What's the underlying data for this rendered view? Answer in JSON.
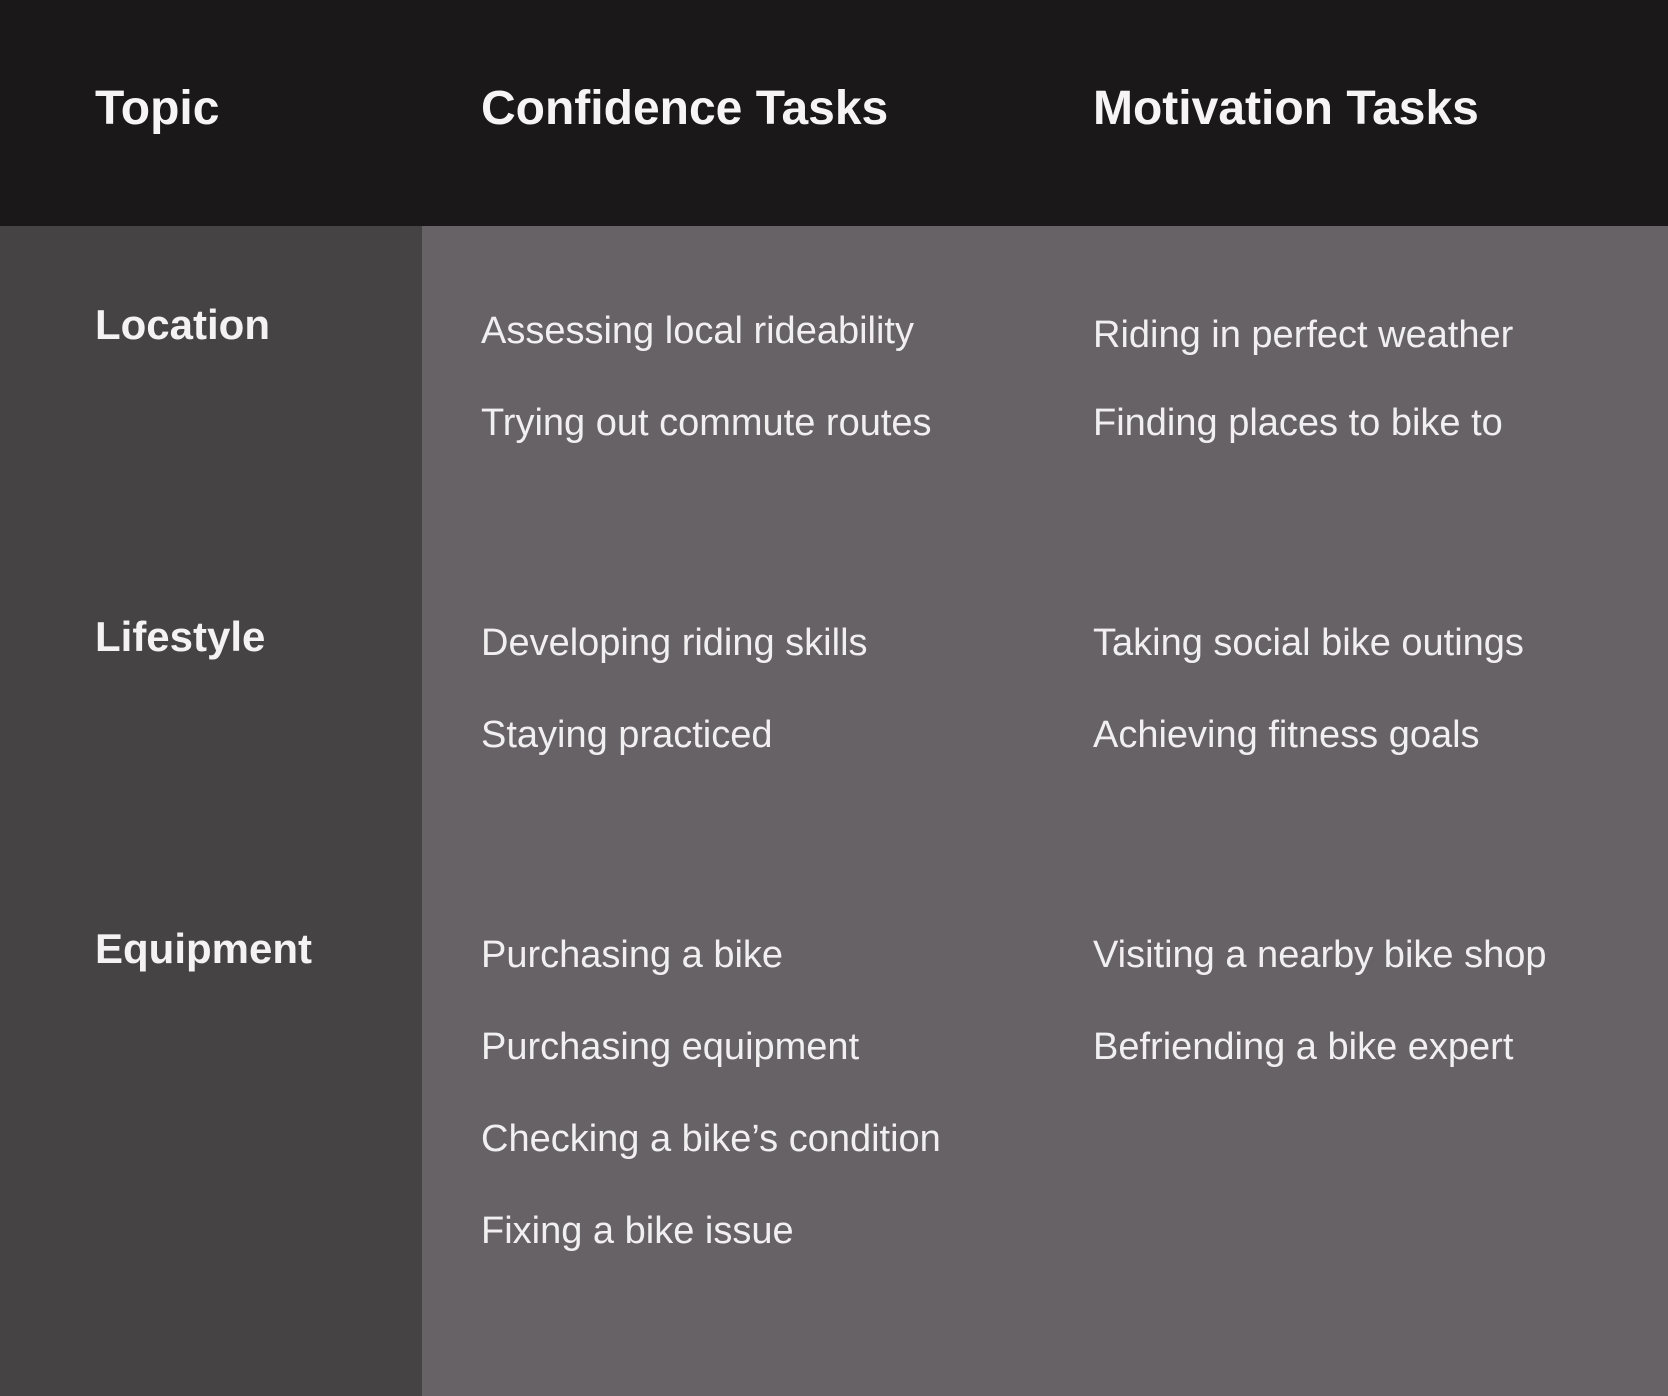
{
  "header": {
    "topic": "Topic",
    "confidence": "Confidence Tasks",
    "motivation": "Motivation Tasks"
  },
  "rows": [
    {
      "topic": "Location",
      "confidence": [
        "Assessing local rideability",
        "Trying out commute routes"
      ],
      "motivation": [
        "Riding in perfect weather",
        "Finding places to bike to"
      ]
    },
    {
      "topic": "Lifestyle",
      "confidence": [
        "Developing riding skills",
        "Staying practiced"
      ],
      "motivation": [
        "Taking social bike outings",
        "Achieving fitness goals"
      ]
    },
    {
      "topic": "Equipment",
      "confidence": [
        "Purchasing a bike",
        "Purchasing equipment",
        "Checking a bike’s condition",
        "Fixing a bike issue"
      ],
      "motivation": [
        "Visiting a nearby bike shop",
        "Befriending a bike expert"
      ]
    }
  ],
  "colors": {
    "header_bg": "#1a1819",
    "topic_column_bg": "#464344",
    "body_bg": "#666266",
    "text": "#f4f2f3"
  }
}
